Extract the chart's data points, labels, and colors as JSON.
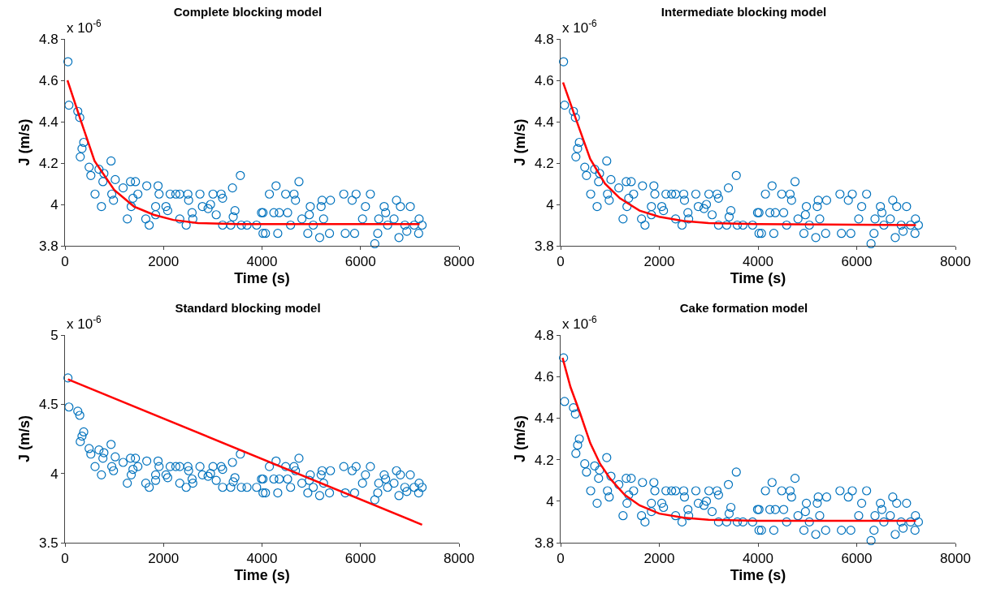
{
  "chart_data": [
    {
      "type": "scatter",
      "title": "Complete blocking model",
      "xlabel": "Time (s)",
      "ylabel": "J (m/s)",
      "annotations": [
        "x 10$^{-6}$"
      ],
      "xlim": [
        0,
        8000
      ],
      "xticks": [
        0,
        2000,
        4000,
        6000,
        8000
      ],
      "ylim": [
        3.8,
        4.8
      ],
      "yticks": [
        3.8,
        4,
        4.2,
        4.4,
        4.6,
        4.8
      ],
      "grid": false,
      "legend": false,
      "series": [
        {
          "type": "scatter",
          "marker": "circle",
          "color": "#0072bd",
          "x": [
            60,
            80,
            260,
            300,
            380,
            345,
            310,
            490,
            525,
            610,
            690,
            740,
            790,
            770,
            935,
            1020,
            985,
            950,
            1180,
            1265,
            1330,
            1430,
            1380,
            1345,
            1480,
            1660,
            1640,
            1710,
            1840,
            1890,
            1910,
            1840,
            2050,
            2085,
            2135,
            2250,
            2330,
            2330,
            2495,
            2510,
            2460,
            2580,
            2595,
            2740,
            2790,
            2905,
            2955,
            3005,
            3070,
            3170,
            3200,
            3400,
            3450,
            3415,
            3200,
            3365,
            3560,
            3580,
            3695,
            3890,
            3990,
            4020,
            4020,
            4070,
            4150,
            4285,
            4240,
            4350,
            4320,
            4480,
            4520,
            4580,
            4650,
            4680,
            4750,
            4810,
            4930,
            4980,
            4960,
            5040,
            5170,
            5200,
            5220,
            5250,
            5390,
            5370,
            5660,
            5690,
            5830,
            5880,
            5910,
            6040,
            6100,
            6200,
            6290,
            6350,
            6370,
            6480,
            6510,
            6550,
            6680,
            6730,
            6810,
            6780,
            6900,
            6940,
            7010,
            7090,
            7180,
            7190,
            7250
          ],
          "values": [
            4.69,
            4.48,
            4.45,
            4.42,
            4.3,
            4.27,
            4.23,
            4.18,
            4.14,
            4.05,
            4.17,
            3.99,
            4.15,
            4.11,
            4.21,
            4.12,
            4.02,
            4.05,
            4.08,
            3.93,
            4.11,
            4.11,
            4.03,
            3.99,
            4.05,
            4.09,
            3.93,
            3.9,
            3.99,
            4.09,
            4.05,
            3.95,
            3.99,
            3.97,
            4.05,
            4.05,
            4.05,
            3.93,
            4.05,
            4.02,
            3.9,
            3.96,
            3.93,
            4.05,
            3.99,
            3.98,
            4,
            4.05,
            3.95,
            4.05,
            4.03,
            4.08,
            3.97,
            3.94,
            3.9,
            3.9,
            4.14,
            3.9,
            3.9,
            3.9,
            3.96,
            3.86,
            3.96,
            3.86,
            4.05,
            4.09,
            3.96,
            3.96,
            3.86,
            4.05,
            3.96,
            3.9,
            4.05,
            4.02,
            4.11,
            3.93,
            3.86,
            3.99,
            3.95,
            3.9,
            3.84,
            3.99,
            4.02,
            3.93,
            4.02,
            3.86,
            4.05,
            3.86,
            4.02,
            3.86,
            4.05,
            3.93,
            3.99,
            4.05,
            3.81,
            3.86,
            3.93,
            3.99,
            3.96,
            3.9,
            3.93,
            4.02,
            3.99,
            3.84,
            3.9,
            3.87,
            3.99,
            3.9,
            3.86,
            3.93,
            3.9
          ]
        },
        {
          "type": "line",
          "marker": "none",
          "line_style": "solid",
          "color": "#ff0000",
          "x": [
            50,
            300,
            600,
            1000,
            1400,
            1800,
            2200,
            2700,
            3500,
            7200
          ],
          "values": [
            4.6,
            4.42,
            4.21,
            4.07,
            3.99,
            3.95,
            3.925,
            3.91,
            3.905,
            3.905
          ]
        }
      ]
    },
    {
      "type": "scatter",
      "title": "Intermediate blocking model",
      "xlabel": "Time (s)",
      "ylabel": "J (m/s)",
      "annotations": [
        "x 10$^{-6}$"
      ],
      "xlim": [
        0,
        8000
      ],
      "xticks": [
        0,
        2000,
        4000,
        6000,
        8000
      ],
      "ylim": [
        3.8,
        4.8
      ],
      "yticks": [
        3.8,
        4,
        4.2,
        4.4,
        4.6,
        4.8
      ],
      "grid": false,
      "legend": false,
      "series": [
        {
          "type": "scatter",
          "marker": "circle",
          "color": "#0072bd",
          "x": [
            60,
            80,
            260,
            300,
            380,
            345,
            310,
            490,
            525,
            610,
            690,
            740,
            790,
            770,
            935,
            1020,
            985,
            950,
            1180,
            1265,
            1330,
            1430,
            1380,
            1345,
            1480,
            1660,
            1640,
            1710,
            1840,
            1890,
            1910,
            1840,
            2050,
            2085,
            2135,
            2250,
            2330,
            2330,
            2495,
            2510,
            2460,
            2580,
            2595,
            2740,
            2790,
            2905,
            2955,
            3005,
            3070,
            3170,
            3200,
            3400,
            3450,
            3415,
            3200,
            3365,
            3560,
            3580,
            3695,
            3890,
            3990,
            4020,
            4020,
            4070,
            4150,
            4285,
            4240,
            4350,
            4320,
            4480,
            4520,
            4580,
            4650,
            4680,
            4750,
            4810,
            4930,
            4980,
            4960,
            5040,
            5170,
            5200,
            5220,
            5250,
            5390,
            5370,
            5660,
            5690,
            5830,
            5880,
            5910,
            6040,
            6100,
            6200,
            6290,
            6350,
            6370,
            6480,
            6510,
            6550,
            6680,
            6730,
            6810,
            6780,
            6900,
            6940,
            7010,
            7090,
            7180,
            7190,
            7250
          ],
          "values": [
            4.69,
            4.48,
            4.45,
            4.42,
            4.3,
            4.27,
            4.23,
            4.18,
            4.14,
            4.05,
            4.17,
            3.99,
            4.15,
            4.11,
            4.21,
            4.12,
            4.02,
            4.05,
            4.08,
            3.93,
            4.11,
            4.11,
            4.03,
            3.99,
            4.05,
            4.09,
            3.93,
            3.9,
            3.99,
            4.09,
            4.05,
            3.95,
            3.99,
            3.97,
            4.05,
            4.05,
            4.05,
            3.93,
            4.05,
            4.02,
            3.9,
            3.96,
            3.93,
            4.05,
            3.99,
            3.98,
            4,
            4.05,
            3.95,
            4.05,
            4.03,
            4.08,
            3.97,
            3.94,
            3.9,
            3.9,
            4.14,
            3.9,
            3.9,
            3.9,
            3.96,
            3.86,
            3.96,
            3.86,
            4.05,
            4.09,
            3.96,
            3.96,
            3.86,
            4.05,
            3.96,
            3.9,
            4.05,
            4.02,
            4.11,
            3.93,
            3.86,
            3.99,
            3.95,
            3.9,
            3.84,
            3.99,
            4.02,
            3.93,
            4.02,
            3.86,
            4.05,
            3.86,
            4.02,
            3.86,
            4.05,
            3.93,
            3.99,
            4.05,
            3.81,
            3.86,
            3.93,
            3.99,
            3.96,
            3.9,
            3.93,
            4.02,
            3.99,
            3.84,
            3.9,
            3.87,
            3.99,
            3.9,
            3.86,
            3.93,
            3.9
          ]
        },
        {
          "type": "line",
          "marker": "none",
          "line_style": "solid",
          "color": "#ff0000",
          "x": [
            50,
            300,
            600,
            900,
            1200,
            1600,
            2000,
            2500,
            3000,
            4000,
            7200
          ],
          "values": [
            4.59,
            4.42,
            4.22,
            4.1,
            4.03,
            3.97,
            3.94,
            3.92,
            3.91,
            3.905,
            3.9
          ]
        }
      ]
    },
    {
      "type": "scatter",
      "title": "Standard blocking model",
      "xlabel": "Time (s)",
      "ylabel": "J (m/s)",
      "annotations": [
        "x 10$^{-6}$"
      ],
      "xlim": [
        0,
        8000
      ],
      "xticks": [
        0,
        2000,
        4000,
        6000,
        8000
      ],
      "ylim": [
        3.5,
        5
      ],
      "yticks": [
        3.5,
        4,
        4.5,
        5
      ],
      "grid": false,
      "legend": false,
      "series": [
        {
          "type": "scatter",
          "marker": "circle",
          "color": "#0072bd",
          "x": [
            60,
            80,
            260,
            300,
            380,
            345,
            310,
            490,
            525,
            610,
            690,
            740,
            790,
            770,
            935,
            1020,
            985,
            950,
            1180,
            1265,
            1330,
            1430,
            1380,
            1345,
            1480,
            1660,
            1640,
            1710,
            1840,
            1890,
            1910,
            1840,
            2050,
            2085,
            2135,
            2250,
            2330,
            2330,
            2495,
            2510,
            2460,
            2580,
            2595,
            2740,
            2790,
            2905,
            2955,
            3005,
            3070,
            3170,
            3200,
            3400,
            3450,
            3415,
            3200,
            3365,
            3560,
            3580,
            3695,
            3890,
            3990,
            4020,
            4020,
            4070,
            4150,
            4285,
            4240,
            4350,
            4320,
            4480,
            4520,
            4580,
            4650,
            4680,
            4750,
            4810,
            4930,
            4980,
            4960,
            5040,
            5170,
            5200,
            5220,
            5250,
            5390,
            5370,
            5660,
            5690,
            5830,
            5880,
            5910,
            6040,
            6100,
            6200,
            6290,
            6350,
            6370,
            6480,
            6510,
            6550,
            6680,
            6730,
            6810,
            6780,
            6900,
            6940,
            7010,
            7090,
            7180,
            7190,
            7250
          ],
          "values": [
            4.69,
            4.48,
            4.45,
            4.42,
            4.3,
            4.27,
            4.23,
            4.18,
            4.14,
            4.05,
            4.17,
            3.99,
            4.15,
            4.11,
            4.21,
            4.12,
            4.02,
            4.05,
            4.08,
            3.93,
            4.11,
            4.11,
            4.03,
            3.99,
            4.05,
            4.09,
            3.93,
            3.9,
            3.99,
            4.09,
            4.05,
            3.95,
            3.99,
            3.97,
            4.05,
            4.05,
            4.05,
            3.93,
            4.05,
            4.02,
            3.9,
            3.96,
            3.93,
            4.05,
            3.99,
            3.98,
            4,
            4.05,
            3.95,
            4.05,
            4.03,
            4.08,
            3.97,
            3.94,
            3.9,
            3.9,
            4.14,
            3.9,
            3.9,
            3.9,
            3.96,
            3.86,
            3.96,
            3.86,
            4.05,
            4.09,
            3.96,
            3.96,
            3.86,
            4.05,
            3.96,
            3.9,
            4.05,
            4.02,
            4.11,
            3.93,
            3.86,
            3.99,
            3.95,
            3.9,
            3.84,
            3.99,
            4.02,
            3.93,
            4.02,
            3.86,
            4.05,
            3.86,
            4.02,
            3.86,
            4.05,
            3.93,
            3.99,
            4.05,
            3.81,
            3.86,
            3.93,
            3.99,
            3.96,
            3.9,
            3.93,
            4.02,
            3.99,
            3.84,
            3.9,
            3.87,
            3.99,
            3.9,
            3.86,
            3.93,
            3.9
          ]
        },
        {
          "type": "line",
          "marker": "none",
          "line_style": "solid",
          "color": "#ff0000",
          "x": [
            60,
            7250
          ],
          "values": [
            4.68,
            3.63
          ]
        }
      ]
    },
    {
      "type": "scatter",
      "title": "Cake formation model",
      "xlabel": "Time (s)",
      "ylabel": "J (m/s)",
      "annotations": [
        "x 10$^{-6}$"
      ],
      "xlim": [
        0,
        8000
      ],
      "xticks": [
        0,
        2000,
        4000,
        6000,
        8000
      ],
      "ylim": [
        3.8,
        4.8
      ],
      "yticks": [
        3.8,
        4,
        4.2,
        4.4,
        4.6,
        4.8
      ],
      "grid": false,
      "legend": false,
      "series": [
        {
          "type": "scatter",
          "marker": "circle",
          "color": "#0072bd",
          "x": [
            60,
            80,
            260,
            300,
            380,
            345,
            310,
            490,
            525,
            610,
            690,
            740,
            790,
            770,
            935,
            1020,
            985,
            950,
            1180,
            1265,
            1330,
            1430,
            1380,
            1345,
            1480,
            1660,
            1640,
            1710,
            1840,
            1890,
            1910,
            1840,
            2050,
            2085,
            2135,
            2250,
            2330,
            2330,
            2495,
            2510,
            2460,
            2580,
            2595,
            2740,
            2790,
            2905,
            2955,
            3005,
            3070,
            3170,
            3200,
            3400,
            3450,
            3415,
            3200,
            3365,
            3560,
            3580,
            3695,
            3890,
            3990,
            4020,
            4020,
            4070,
            4150,
            4285,
            4240,
            4350,
            4320,
            4480,
            4520,
            4580,
            4650,
            4680,
            4750,
            4810,
            4930,
            4980,
            4960,
            5040,
            5170,
            5200,
            5220,
            5250,
            5390,
            5370,
            5660,
            5690,
            5830,
            5880,
            5910,
            6040,
            6100,
            6200,
            6290,
            6350,
            6370,
            6480,
            6510,
            6550,
            6680,
            6730,
            6810,
            6780,
            6900,
            6940,
            7010,
            7090,
            7180,
            7190,
            7250
          ],
          "values": [
            4.69,
            4.48,
            4.45,
            4.42,
            4.3,
            4.27,
            4.23,
            4.18,
            4.14,
            4.05,
            4.17,
            3.99,
            4.15,
            4.11,
            4.21,
            4.12,
            4.02,
            4.05,
            4.08,
            3.93,
            4.11,
            4.11,
            4.03,
            3.99,
            4.05,
            4.09,
            3.93,
            3.9,
            3.99,
            4.09,
            4.05,
            3.95,
            3.99,
            3.97,
            4.05,
            4.05,
            4.05,
            3.93,
            4.05,
            4.02,
            3.9,
            3.96,
            3.93,
            4.05,
            3.99,
            3.98,
            4,
            4.05,
            3.95,
            4.05,
            4.03,
            4.08,
            3.97,
            3.94,
            3.9,
            3.9,
            4.14,
            3.9,
            3.9,
            3.9,
            3.96,
            3.86,
            3.96,
            3.86,
            4.05,
            4.09,
            3.96,
            3.96,
            3.86,
            4.05,
            3.96,
            3.9,
            4.05,
            4.02,
            4.11,
            3.93,
            3.86,
            3.99,
            3.95,
            3.9,
            3.84,
            3.99,
            4.02,
            3.93,
            4.02,
            3.86,
            4.05,
            3.86,
            4.02,
            3.86,
            4.05,
            3.93,
            3.99,
            4.05,
            3.81,
            3.86,
            3.93,
            3.99,
            3.96,
            3.9,
            3.93,
            4.02,
            3.99,
            3.84,
            3.9,
            3.87,
            3.99,
            3.9,
            3.86,
            3.93,
            3.9
          ]
        },
        {
          "type": "line",
          "marker": "none",
          "line_style": "solid",
          "color": "#ff0000",
          "x": [
            40,
            200,
            400,
            600,
            800,
            1000,
            1300,
            1600,
            2000,
            2500,
            3000,
            4000,
            7200
          ],
          "values": [
            4.69,
            4.55,
            4.42,
            4.28,
            4.18,
            4.11,
            4.03,
            3.98,
            3.94,
            3.92,
            3.91,
            3.905,
            3.905
          ]
        }
      ]
    }
  ]
}
